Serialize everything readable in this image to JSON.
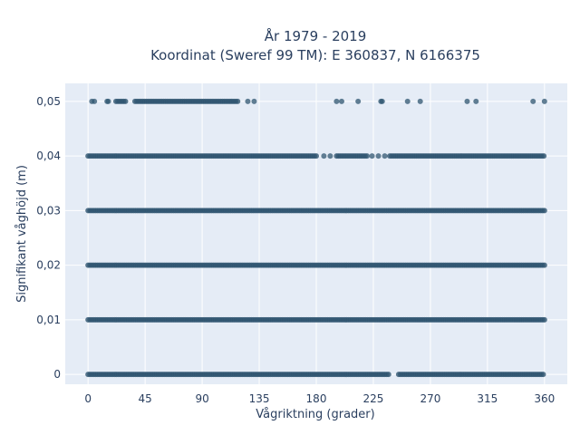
{
  "chart_data": {
    "type": "scatter",
    "title_line1": "År 1979 - 2019",
    "title_line2": "Koordinat (Sweref 99 TM): E 360837, N 6166375",
    "xlabel": "Vågriktning (grader)",
    "ylabel": "Signifikant våghöjd (m)",
    "xlim": [
      -18,
      378
    ],
    "ylim": [
      -0.0018,
      0.0533
    ],
    "x_ticks": [
      0,
      45,
      90,
      135,
      180,
      225,
      270,
      315,
      360
    ],
    "x_tick_labels": [
      "0",
      "45",
      "90",
      "135",
      "180",
      "225",
      "270",
      "315",
      "360"
    ],
    "y_ticks": [
      0,
      0.01,
      0.02,
      0.03,
      0.04,
      0.05
    ],
    "y_tick_labels": [
      "0",
      "0,01",
      "0,02",
      "0,03",
      "0,04",
      "0,05"
    ],
    "grid": true,
    "colors": {
      "marker": "#2f5570",
      "plot_bg": "#e5ecf6",
      "grid": "#ffffff",
      "text": "#2a3f5f"
    },
    "series": [
      {
        "values": [
          {
            "y": 0,
            "segments": [
              [
                0,
                237
              ],
              [
                245,
                360
              ]
            ],
            "points": []
          },
          {
            "y": 0.01,
            "segments": [
              [
                0,
                360
              ]
            ],
            "points": []
          },
          {
            "y": 0.02,
            "segments": [
              [
                0,
                360
              ]
            ],
            "points": []
          },
          {
            "y": 0.03,
            "segments": [
              [
                0,
                360
              ]
            ],
            "points": []
          },
          {
            "y": 0.04,
            "segments": [
              [
                0,
                181
              ],
              [
                196,
                220
              ],
              [
                238,
                360
              ]
            ],
            "points": [
              186,
              191,
              224,
              229,
              234
            ]
          },
          {
            "y": 0.05,
            "segments": [
              [
                22,
                30
              ],
              [
                37,
                118
              ]
            ],
            "points": [
              3,
              5,
              15,
              16,
              126,
              131,
              196,
              200,
              213,
              231,
              232,
              252,
              262,
              299,
              306,
              351,
              360
            ]
          }
        ]
      }
    ]
  }
}
